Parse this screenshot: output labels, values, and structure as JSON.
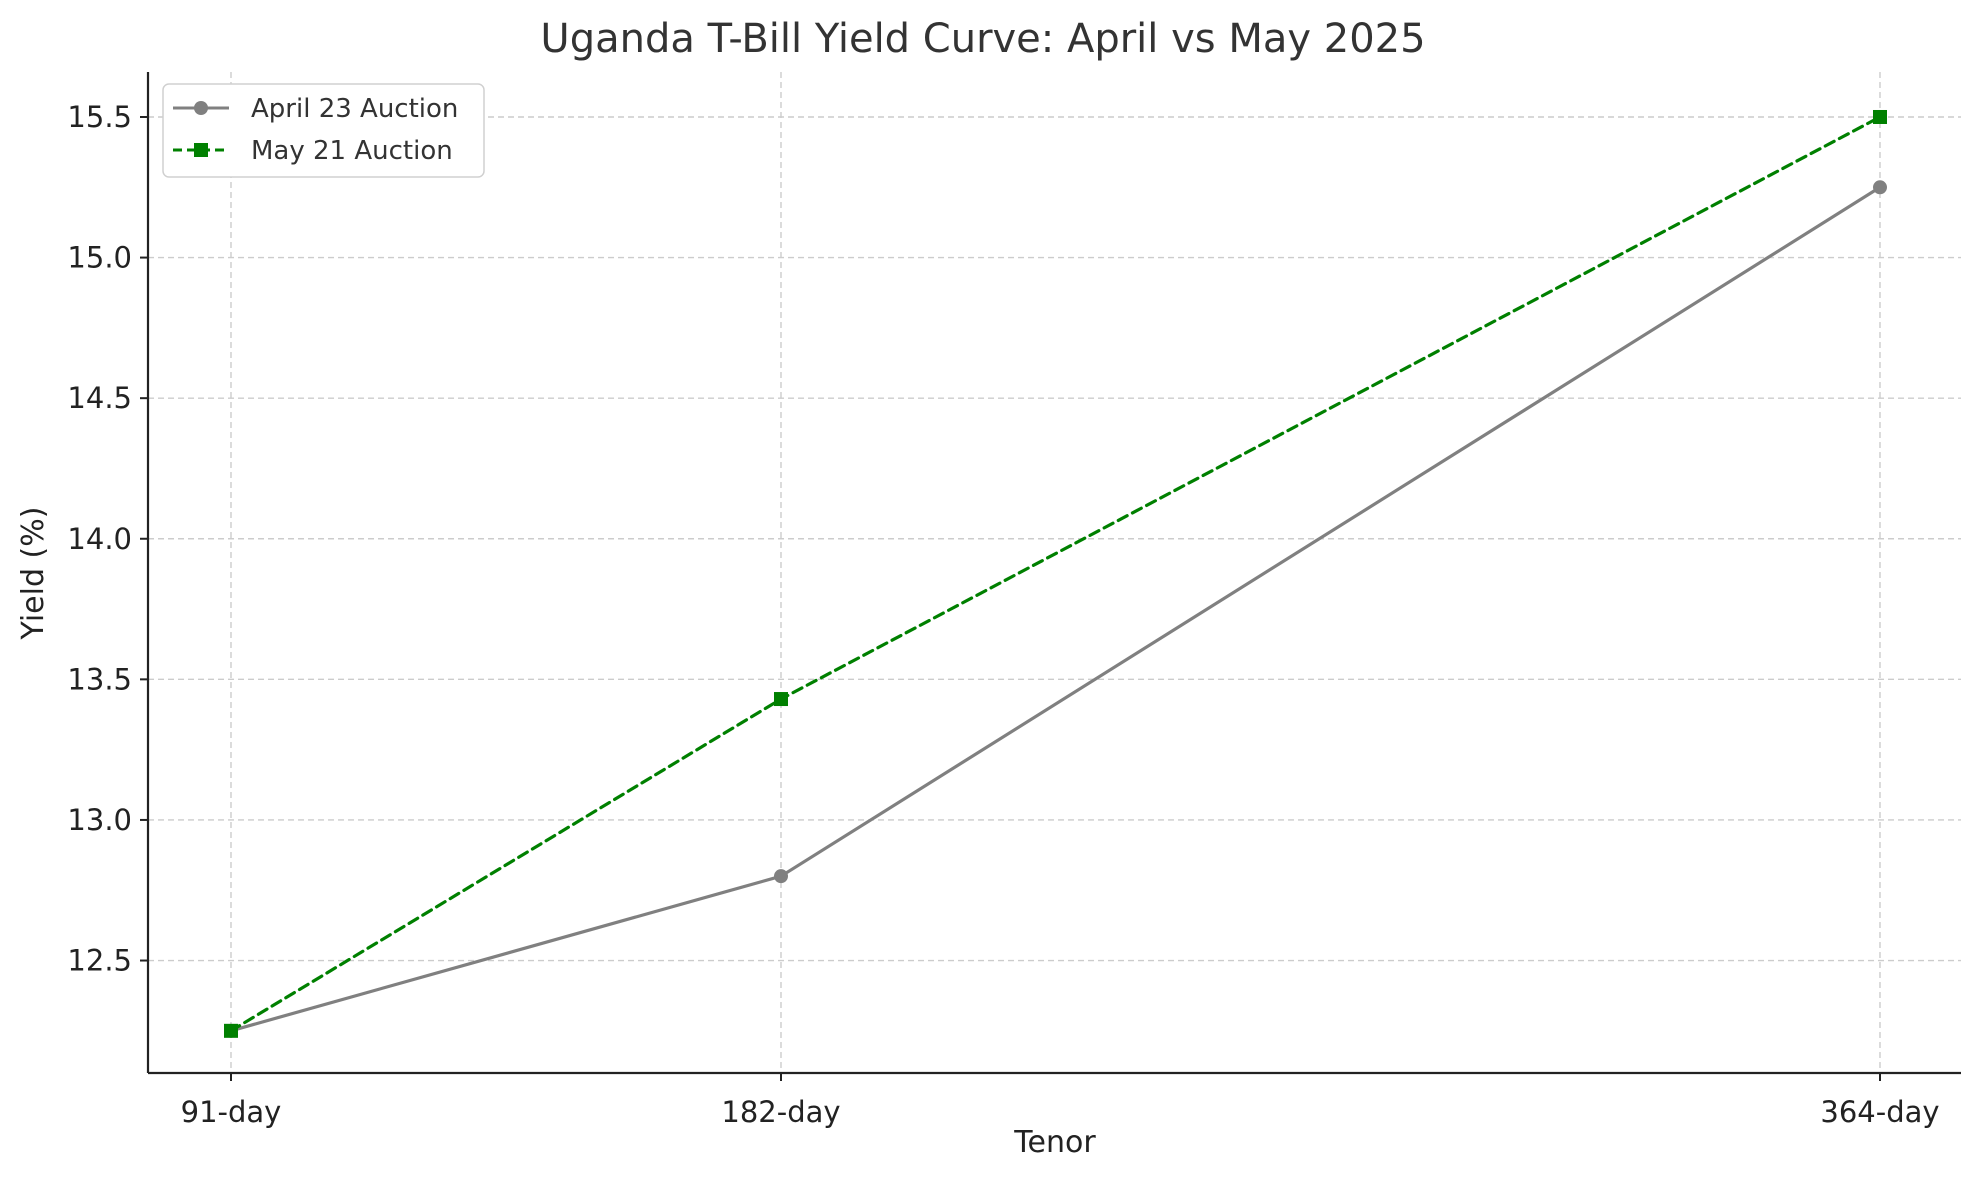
{
  "chart_data": {
    "type": "line",
    "title": "Uganda T-Bill Yield Curve: April vs May 2025",
    "xlabel": "Tenor",
    "ylabel": "Yield (%)",
    "categories": [
      "91-day",
      "182-day",
      "364-day"
    ],
    "x": [
      91,
      182,
      364
    ],
    "ylim": [
      12.1,
      15.66
    ],
    "yticks": [
      12.5,
      13.0,
      13.5,
      14.0,
      14.5,
      15.0,
      15.5
    ],
    "ytick_labels": [
      "12.5",
      "13.0",
      "13.5",
      "14.0",
      "14.5",
      "15.0",
      "15.5"
    ],
    "grid": true,
    "legend_position": "top-left",
    "series": [
      {
        "name": "April 23 Auction",
        "values": [
          12.25,
          12.8,
          15.25
        ],
        "color": "#808080",
        "line_style": "solid",
        "marker": "circle"
      },
      {
        "name": "May 21 Auction",
        "values": [
          12.25,
          13.43,
          15.5
        ],
        "color": "#008000",
        "line_style": "dashed",
        "marker": "square"
      }
    ]
  }
}
